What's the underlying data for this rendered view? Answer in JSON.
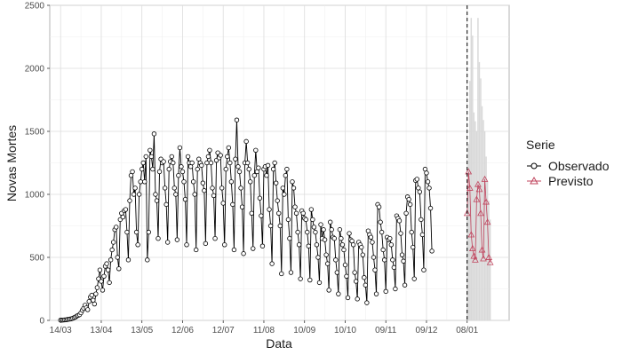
{
  "chart_data": {
    "type": "line",
    "xlabel": "Data",
    "ylabel": "Novas Mortes",
    "ylim": [
      0,
      2500
    ],
    "yticks": [
      0,
      500,
      1000,
      1500,
      2000,
      2500
    ],
    "xlim": [
      "2020-03-06",
      "2021-02-08"
    ],
    "xticks": [
      {
        "date": "2020-03-14",
        "label": "14/03"
      },
      {
        "date": "2020-04-13",
        "label": "13/04"
      },
      {
        "date": "2020-05-13",
        "label": "13/05"
      },
      {
        "date": "2020-06-12",
        "label": "12/06"
      },
      {
        "date": "2020-07-12",
        "label": "12/07"
      },
      {
        "date": "2020-08-11",
        "label": "11/08"
      },
      {
        "date": "2020-09-10",
        "label": "10/09"
      },
      {
        "date": "2020-10-10",
        "label": "10/10"
      },
      {
        "date": "2020-11-09",
        "label": "09/11"
      },
      {
        "date": "2020-12-09",
        "label": "09/12"
      },
      {
        "date": "2021-01-08",
        "label": "08/01"
      }
    ],
    "grid": true,
    "legend": {
      "title": "Serie",
      "position": "right"
    },
    "vline": "2021-01-08",
    "series": [
      {
        "name": "Observado",
        "color": "#000000",
        "marker": "circle",
        "start": "2020-03-14",
        "values": [
          2,
          2,
          3,
          4,
          5,
          7,
          9,
          11,
          13,
          17,
          22,
          27,
          35,
          40,
          45,
          60,
          80,
          95,
          120,
          100,
          85,
          150,
          185,
          200,
          160,
          130,
          210,
          260,
          330,
          400,
          310,
          240,
          350,
          430,
          450,
          400,
          300,
          480,
          560,
          620,
          720,
          740,
          500,
          410,
          800,
          850,
          820,
          870,
          880,
          700,
          480,
          950,
          1150,
          1180,
          1000,
          1050,
          700,
          600,
          1000,
          1100,
          1200,
          1250,
          1100,
          1300,
          480,
          700,
          1350,
          1300,
          1200,
          1480,
          1000,
          950,
          650,
          1180,
          1280,
          1250,
          1260,
          1050,
          920,
          620,
          1200,
          1260,
          1300,
          1250,
          1050,
          1000,
          640,
          1150,
          1370,
          1220,
          1180,
          1100,
          960,
          600,
          1300,
          1250,
          1220,
          1250,
          1100,
          1000,
          560,
          1200,
          1280,
          1250,
          1230,
          1090,
          1030,
          610,
          1250,
          1300,
          1350,
          1250,
          1050,
          990,
          650,
          1270,
          1330,
          1290,
          1310,
          1050,
          930,
          600,
          1200,
          1300,
          1370,
          1250,
          1100,
          920,
          560,
          1280,
          1590,
          1220,
          1180,
          1050,
          900,
          530,
          1250,
          1420,
          1250,
          1200,
          1100,
          850,
          570,
          1150,
          1350,
          1180,
          1210,
          970,
          830,
          590,
          1200,
          1220,
          1150,
          1230,
          880,
          750,
          450,
          1200,
          1250,
          1090,
          950,
          850,
          750,
          370,
          1050,
          1000,
          1150,
          1200,
          800,
          650,
          380,
          1100,
          1050,
          900,
          850,
          700,
          600,
          330,
          870,
          850,
          810,
          800,
          700,
          590,
          320,
          880,
          800,
          740,
          700,
          600,
          500,
          300,
          760,
          650,
          720,
          640,
          520,
          450,
          240,
          780,
          720,
          660,
          650,
          480,
          380,
          210,
          720,
          650,
          600,
          560,
          440,
          350,
          180,
          690,
          640,
          630,
          600,
          380,
          310,
          170,
          620,
          600,
          580,
          520,
          340,
          280,
          140,
          710,
          680,
          660,
          620,
          500,
          400,
          210,
          920,
          900,
          780,
          700,
          560,
          480,
          230,
          660,
          640,
          650,
          600,
          480,
          420,
          250,
          830,
          810,
          790,
          690,
          520,
          470,
          280,
          850,
          980,
          960,
          920,
          700,
          580,
          330,
          1110,
          1120,
          1050,
          1020,
          800,
          680,
          400,
          1200,
          1170,
          1100,
          1050,
          890,
          550
        ]
      },
      {
        "name": "Previsto",
        "color": "#c0455e",
        "marker": "triangle",
        "start": "2021-01-08",
        "values": [
          850,
          1180,
          1050,
          680,
          570,
          510,
          480,
          960,
          1080,
          1040,
          850,
          560,
          490,
          1120,
          940,
          780,
          500,
          460
        ],
        "interval_upper": [
          980,
          1400,
          1900,
          2400,
          2260,
          1650,
          1580,
          1500,
          2400,
          2050,
          1920,
          1700,
          1590,
          1500,
          1300,
          1100,
          950,
          800
        ],
        "interval_lower": [
          0,
          0,
          0,
          0,
          0,
          0,
          0,
          0,
          0,
          0,
          0,
          0,
          0,
          0,
          0,
          0,
          0,
          0
        ]
      }
    ]
  }
}
